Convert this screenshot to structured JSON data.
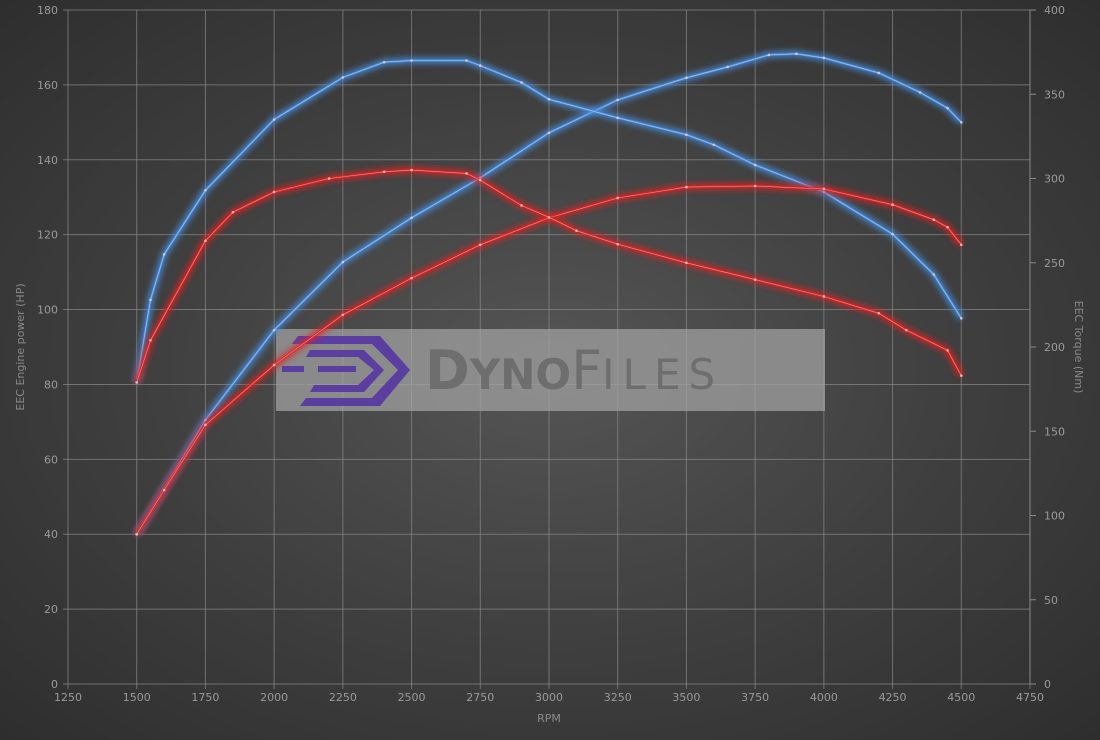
{
  "chart_data": {
    "type": "line",
    "title": "",
    "xlabel": "RPM",
    "ylabel": "EEC Engine power (HP)",
    "y2label": "EEC Torque (Nm)",
    "xlim": [
      1250,
      4750
    ],
    "ylim": [
      0,
      180
    ],
    "y2lim": [
      0,
      400
    ],
    "xticks": [
      1250,
      1500,
      1750,
      2000,
      2250,
      2500,
      2750,
      3000,
      3250,
      3500,
      3750,
      4000,
      4250,
      4500,
      4750
    ],
    "yticks": [
      0,
      20,
      40,
      60,
      80,
      100,
      120,
      140,
      160,
      180
    ],
    "y2ticks": [
      0,
      50,
      100,
      150,
      200,
      250,
      300,
      350,
      400
    ],
    "grid": true,
    "watermark": "DynoFiles",
    "series": [
      {
        "axis": "left",
        "color": "#4a90e2",
        "rpm": [
          1500,
          1750,
          2000,
          2250,
          2500,
          2750,
          3000,
          3250,
          3500,
          3650,
          3800,
          3900,
          4000,
          4200,
          4350,
          4450,
          4500
        ],
        "values": [
          40,
          70.5,
          94.5,
          112.7,
          124.5,
          135.2,
          147.2,
          156,
          161.9,
          164.8,
          168,
          168.3,
          167.2,
          163.2,
          158,
          153.8,
          150
        ]
      },
      {
        "axis": "right",
        "color": "#4a90e2",
        "rpm": [
          1500,
          1550,
          1600,
          1750,
          2000,
          2250,
          2400,
          2500,
          2700,
          2750,
          2900,
          3000,
          3250,
          3500,
          3600,
          3750,
          4000,
          4250,
          4400,
          4500
        ],
        "values": [
          179,
          228,
          255,
          293,
          335,
          360,
          369,
          370,
          370,
          367,
          357,
          347,
          336,
          326,
          320,
          308,
          292,
          267,
          243,
          217
        ]
      },
      {
        "axis": "left",
        "color": "#e02424",
        "rpm": [
          1500,
          1600,
          1750,
          2000,
          2250,
          2500,
          2750,
          3000,
          3250,
          3500,
          3750,
          4000,
          4250,
          4400,
          4450,
          4500
        ],
        "values": [
          40,
          51.8,
          69.2,
          85.2,
          98.6,
          108.4,
          117.3,
          124.5,
          129.8,
          132.7,
          133,
          132.2,
          128,
          124,
          122,
          117.3
        ]
      },
      {
        "axis": "right",
        "color": "#e02424",
        "rpm": [
          1500,
          1550,
          1750,
          1850,
          2000,
          2200,
          2400,
          2500,
          2700,
          2750,
          2900,
          3000,
          3100,
          3250,
          3500,
          3750,
          4000,
          4200,
          4300,
          4450,
          4500
        ],
        "values": [
          179,
          204,
          263,
          280,
          292,
          300,
          304,
          305,
          303,
          299,
          284,
          277,
          269,
          261,
          250,
          240,
          230,
          220,
          210,
          198,
          183
        ]
      }
    ]
  }
}
